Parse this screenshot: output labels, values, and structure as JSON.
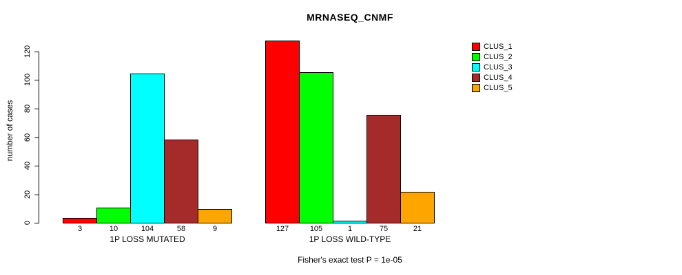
{
  "chart_data": {
    "type": "bar",
    "title": "MRNASEQ_CNMF",
    "ylabel": "number of cases",
    "xlabel": "",
    "ylim": [
      0,
      120
    ],
    "yticks": [
      0,
      20,
      40,
      60,
      80,
      100,
      120
    ],
    "grid": false,
    "legend_position": "right-outside",
    "bar_border_color": "#000000",
    "background_color": "#FFFFFF",
    "categories": [
      "1P LOSS MUTATED",
      "1P LOSS WILD-TYPE"
    ],
    "series": [
      {
        "name": "CLUS_1",
        "color": "#FF0000",
        "values": [
          3,
          127
        ]
      },
      {
        "name": "CLUS_2",
        "color": "#00FF00",
        "values": [
          10,
          105
        ]
      },
      {
        "name": "CLUS_3",
        "color": "#00FFFF",
        "values": [
          104,
          1
        ]
      },
      {
        "name": "CLUS_4",
        "color": "#A52A2A",
        "values": [
          58,
          75
        ]
      },
      {
        "name": "CLUS_5",
        "color": "#FFA500",
        "values": [
          9,
          21
        ]
      }
    ],
    "annotation": "Fisher's exact test P = 1e-05"
  }
}
